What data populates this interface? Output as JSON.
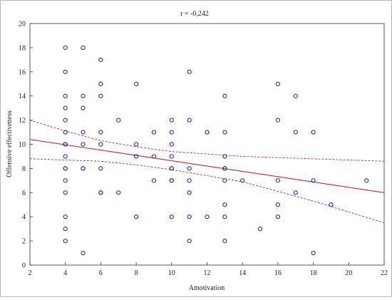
{
  "chart_data": {
    "type": "scatter",
    "title": "r = -0,242",
    "xlabel": "Amotivation",
    "ylabel": "Offensive effectiveness",
    "xlim": [
      2,
      22
    ],
    "ylim": [
      0,
      20
    ],
    "x_ticks": [
      2,
      4,
      6,
      8,
      10,
      12,
      14,
      16,
      18,
      20,
      22
    ],
    "y_ticks": [
      0,
      2,
      4,
      6,
      8,
      10,
      12,
      14,
      16,
      18,
      20
    ],
    "grid": false,
    "regression": {
      "x": [
        2,
        22
      ],
      "y": [
        10.4,
        6.0
      ]
    },
    "confidence_band_upper": {
      "x": [
        2,
        4,
        6,
        8,
        10,
        12,
        14,
        16,
        18,
        20,
        22
      ],
      "y": [
        12.0,
        11.1,
        10.3,
        9.8,
        9.4,
        9.2,
        9.0,
        8.9,
        8.8,
        8.7,
        8.6
      ]
    },
    "confidence_band_lower": {
      "x": [
        2,
        4,
        6,
        8,
        10,
        12,
        14,
        16,
        18,
        20,
        22
      ],
      "y": [
        8.8,
        8.7,
        8.6,
        8.3,
        7.9,
        7.4,
        6.9,
        6.1,
        5.3,
        4.4,
        3.5
      ]
    },
    "points": {
      "x": [
        4,
        4,
        4,
        4,
        4,
        4,
        4,
        4,
        4,
        4,
        4,
        4,
        4,
        4,
        4,
        4,
        5,
        5,
        5,
        5,
        5,
        5,
        5,
        5,
        6,
        6,
        6,
        6,
        6,
        6,
        6,
        6,
        7,
        7,
        8,
        8,
        8,
        8,
        9,
        9,
        9,
        10,
        10,
        10,
        10,
        10,
        10,
        10,
        10,
        10,
        11,
        11,
        11,
        11,
        11,
        11,
        11,
        12,
        12,
        13,
        13,
        13,
        13,
        13,
        13,
        13,
        13,
        13,
        14,
        15,
        16,
        16,
        16,
        16,
        16,
        17,
        17,
        17,
        18,
        18,
        18,
        19,
        21
      ],
      "y": [
        18,
        16,
        14,
        13,
        12,
        11,
        10,
        9,
        8,
        7,
        6,
        4,
        3,
        2,
        8,
        10,
        18,
        14,
        13,
        11,
        10,
        8,
        1,
        8,
        17,
        15,
        14,
        11,
        10,
        8,
        6,
        6,
        12,
        6,
        15,
        10,
        9,
        4,
        11,
        9,
        7,
        12,
        11,
        10,
        9,
        8,
        8,
        7,
        7,
        4,
        16,
        12,
        7,
        6,
        4,
        2,
        8,
        11,
        4,
        14,
        11,
        9,
        8,
        7,
        5,
        4,
        2,
        8,
        7,
        3,
        15,
        12,
        7,
        5,
        4,
        14,
        11,
        6,
        11,
        7,
        1,
        5,
        7
      ]
    }
  }
}
